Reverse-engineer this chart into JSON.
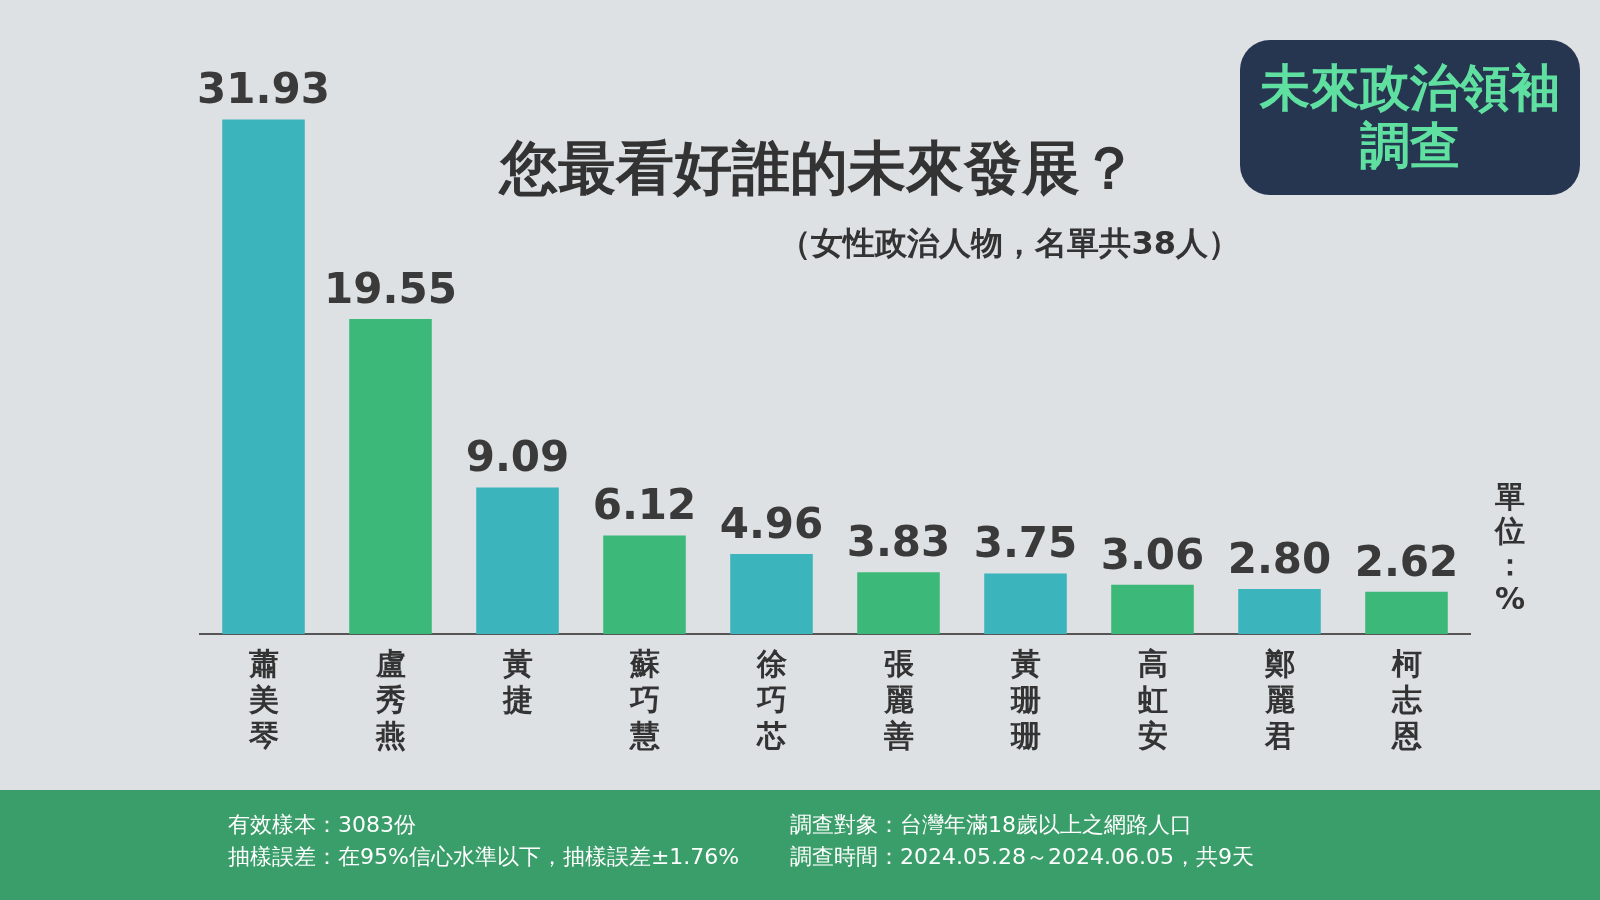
{
  "chart_data": {
    "type": "bar",
    "title": "您最看好誰的未來發展？",
    "subtitle": "（女性政治人物，名單共38人）",
    "ylabel": "單位：%",
    "categories": [
      "蕭美琴",
      "盧秀燕",
      "黃捷",
      "蘇巧慧",
      "徐巧芯",
      "張麗善",
      "黃珊珊",
      "高虹安",
      "鄭麗君",
      "柯志恩"
    ],
    "values": [
      31.93,
      19.55,
      9.09,
      6.12,
      4.96,
      3.83,
      3.75,
      3.06,
      2.8,
      2.62
    ],
    "value_labels": [
      "31.93",
      "19.55",
      "9.09",
      "6.12",
      "4.96",
      "3.83",
      "3.75",
      "3.06",
      "2.80",
      "2.62"
    ],
    "colors": [
      "#3bb5bb",
      "#3cb878",
      "#3bb5bb",
      "#3cb878",
      "#3bb5bb",
      "#3cb878",
      "#3bb5bb",
      "#3cb878",
      "#3bb5bb",
      "#3cb878"
    ],
    "grid": false,
    "legend": false,
    "annotations": [
      "未來政治領袖調查",
      "有效樣本：3083份",
      "抽樣誤差：在95%信心水準以下，抽樣誤差±1.76%",
      "調查對象：台灣年滿18歲以上之網路人口",
      "調查時間：2024.05.28～2024.06.05，共9天"
    ]
  }
}
